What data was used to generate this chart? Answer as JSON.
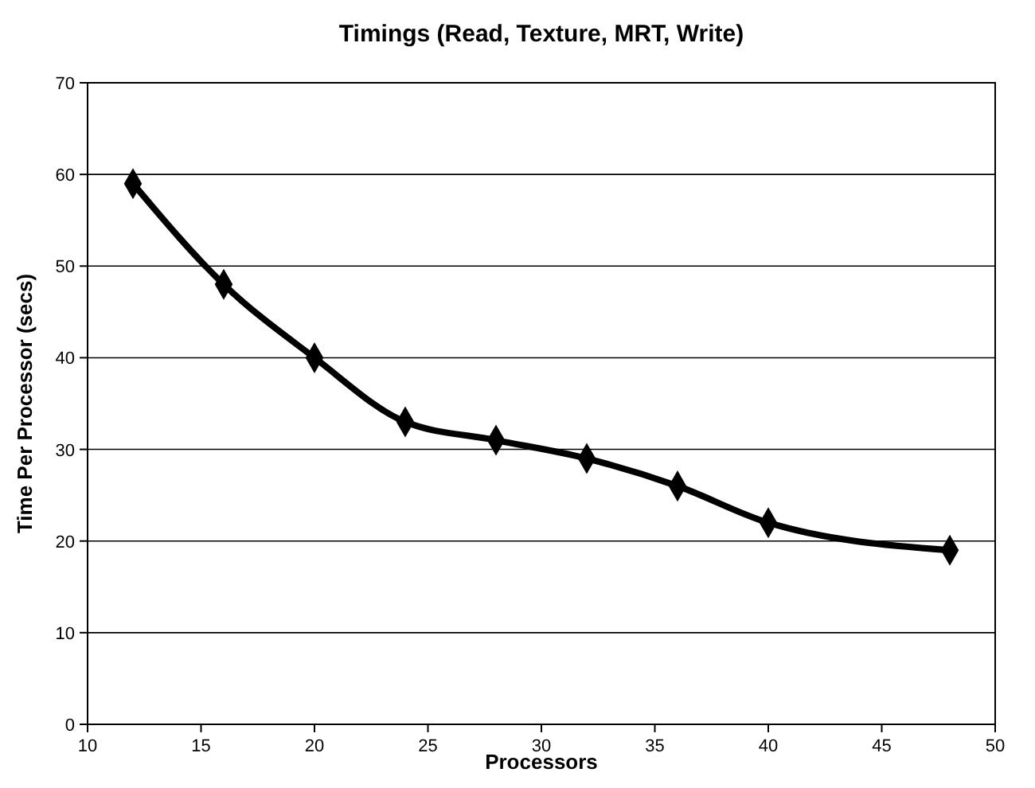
{
  "chart_data": {
    "type": "line",
    "title": "Timings (Read, Texture, MRT, Write)",
    "xlabel": "Processors",
    "ylabel": "Time Per Processor (secs)",
    "x": [
      12,
      16,
      20,
      24,
      28,
      32,
      36,
      40,
      48
    ],
    "series": [
      {
        "color": "#000000",
        "values": [
          59,
          48,
          40,
          33,
          31,
          29,
          26,
          22,
          19
        ]
      }
    ],
    "xlim": [
      10,
      50
    ],
    "xticks": [
      10,
      15,
      20,
      25,
      30,
      35,
      40,
      45,
      50
    ],
    "ylim": [
      0,
      70
    ],
    "yticks": [
      0,
      10,
      20,
      30,
      40,
      50,
      60,
      70
    ],
    "grid": "y",
    "marker": "diamond",
    "line_style": "solid"
  }
}
